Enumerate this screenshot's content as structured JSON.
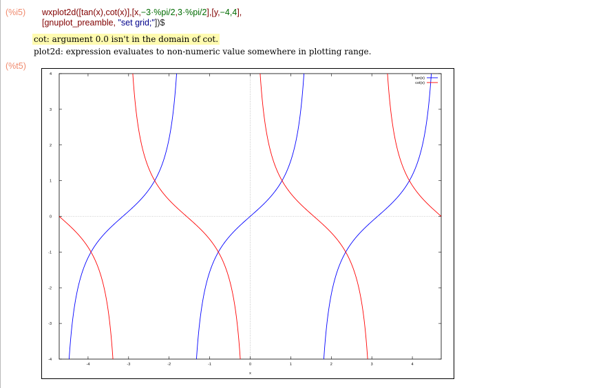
{
  "input": {
    "label": "(%i5)",
    "code": {
      "t1": "wxplot2d",
      "t2": "([",
      "t3": "tan",
      "t4": "(x),",
      "t5": "cot",
      "t6": "(x)],[x,",
      "t7": "−3·%pi/2",
      "t8": ",",
      "t9": "3·%pi/2",
      "t10": "],[y,",
      "t11": "−4,4",
      "t12": "],",
      "t13": "[gnuplot_preamble, ",
      "t14": "\"set grid;\"",
      "t15": "])$"
    }
  },
  "messages": {
    "warning": "cot: argument 0.0 isn't in the domain of cot.",
    "info": "plot2d: expression evaluates to non-numeric value somewhere in plotting range."
  },
  "output": {
    "label": "(%t5)"
  },
  "chart_data": {
    "type": "line",
    "xlim": [
      -4.712,
      4.712
    ],
    "ylim": [
      -4,
      4
    ],
    "x_ticks": [
      "-4",
      "-3",
      "-2",
      "-1",
      "0",
      "1",
      "2",
      "3",
      "4"
    ],
    "y_ticks": [
      "-4",
      "-3",
      "-2",
      "-1",
      "0",
      "1",
      "2",
      "3",
      "4"
    ],
    "xlabel": "x",
    "grid": true,
    "legend_position": "top-right",
    "series": [
      {
        "name": "tan(x)",
        "color": "#0000ff",
        "function": "tan"
      },
      {
        "name": "cot(x)",
        "color": "#ff0000",
        "function": "cot"
      }
    ]
  }
}
